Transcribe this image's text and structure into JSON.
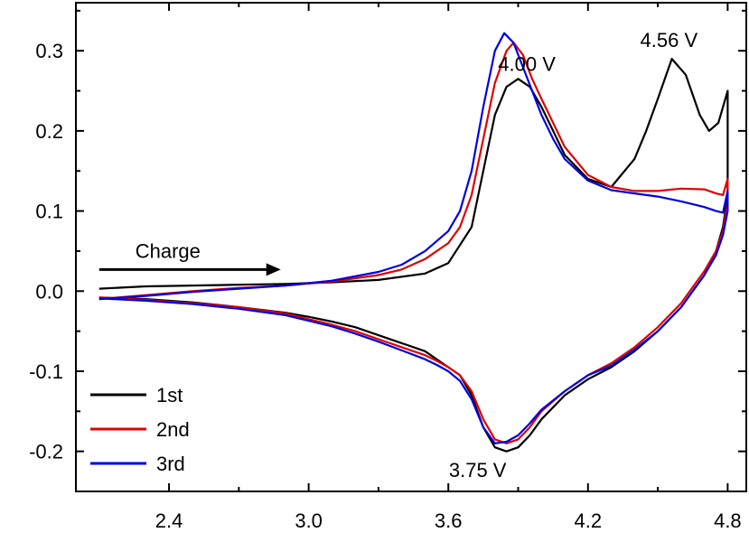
{
  "chart_data": {
    "type": "line",
    "title": "",
    "xlabel": "",
    "ylabel": "",
    "xlim": [
      2.0,
      4.88
    ],
    "ylim": [
      -0.25,
      0.36
    ],
    "x_ticks": [
      2.4,
      3.0,
      3.6,
      4.2,
      4.8
    ],
    "x_tick_labels": [
      "2.4",
      "3.0",
      "3.6",
      "4.2",
      "4.8"
    ],
    "y_ticks": [
      -0.2,
      -0.1,
      0.0,
      0.1,
      0.2,
      0.3
    ],
    "y_tick_labels": [
      "-0.2",
      "-0.1",
      "0.0",
      "0.1",
      "0.2",
      "0.3"
    ],
    "grid": false,
    "legend_position": "bottom-left",
    "series": [
      {
        "name": "1st",
        "color": "#000000",
        "x": [
          2.1,
          2.3,
          2.5,
          2.7,
          2.9,
          3.1,
          3.3,
          3.5,
          3.6,
          3.7,
          3.75,
          3.8,
          3.85,
          3.9,
          3.95,
          4.0,
          4.05,
          4.1,
          4.2,
          4.3,
          4.4,
          4.45,
          4.5,
          4.56,
          4.62,
          4.68,
          4.72,
          4.76,
          4.8,
          4.8,
          4.78,
          4.75,
          4.7,
          4.6,
          4.5,
          4.4,
          4.3,
          4.2,
          4.1,
          4.0,
          3.95,
          3.9,
          3.85,
          3.8,
          3.75,
          3.7,
          3.65,
          3.6,
          3.55,
          3.5,
          3.4,
          3.3,
          3.2,
          3.1,
          3.0,
          2.9,
          2.7,
          2.5,
          2.3,
          2.1
        ],
        "y": [
          0.003,
          0.006,
          0.007,
          0.008,
          0.009,
          0.011,
          0.014,
          0.022,
          0.035,
          0.08,
          0.15,
          0.22,
          0.255,
          0.265,
          0.255,
          0.23,
          0.2,
          0.17,
          0.14,
          0.13,
          0.165,
          0.2,
          0.24,
          0.29,
          0.27,
          0.22,
          0.2,
          0.21,
          0.25,
          0.12,
          0.08,
          0.05,
          0.02,
          -0.02,
          -0.05,
          -0.075,
          -0.095,
          -0.11,
          -0.13,
          -0.16,
          -0.18,
          -0.195,
          -0.2,
          -0.195,
          -0.17,
          -0.13,
          -0.105,
          -0.095,
          -0.085,
          -0.075,
          -0.065,
          -0.055,
          -0.045,
          -0.038,
          -0.032,
          -0.027,
          -0.02,
          -0.014,
          -0.01,
          -0.008
        ]
      },
      {
        "name": "2nd",
        "color": "#e00000",
        "x": [
          2.1,
          2.3,
          2.5,
          2.7,
          2.9,
          3.1,
          3.3,
          3.4,
          3.5,
          3.6,
          3.65,
          3.7,
          3.75,
          3.8,
          3.85,
          3.88,
          3.92,
          3.96,
          4.0,
          4.05,
          4.1,
          4.2,
          4.3,
          4.4,
          4.5,
          4.6,
          4.7,
          4.75,
          4.78,
          4.8,
          4.8,
          4.78,
          4.75,
          4.7,
          4.6,
          4.5,
          4.4,
          4.3,
          4.2,
          4.1,
          4.0,
          3.95,
          3.9,
          3.85,
          3.8,
          3.75,
          3.7,
          3.65,
          3.6,
          3.55,
          3.5,
          3.4,
          3.3,
          3.2,
          3.1,
          3.0,
          2.9,
          2.7,
          2.5,
          2.3,
          2.1
        ],
        "y": [
          -0.01,
          -0.005,
          0.0,
          0.004,
          0.007,
          0.012,
          0.02,
          0.027,
          0.04,
          0.06,
          0.08,
          0.12,
          0.19,
          0.26,
          0.3,
          0.31,
          0.295,
          0.265,
          0.24,
          0.21,
          0.18,
          0.145,
          0.13,
          0.125,
          0.125,
          0.128,
          0.127,
          0.122,
          0.12,
          0.14,
          0.11,
          0.075,
          0.05,
          0.025,
          -0.015,
          -0.045,
          -0.07,
          -0.09,
          -0.105,
          -0.125,
          -0.15,
          -0.17,
          -0.185,
          -0.19,
          -0.185,
          -0.16,
          -0.125,
          -0.105,
          -0.095,
          -0.087,
          -0.08,
          -0.07,
          -0.06,
          -0.05,
          -0.042,
          -0.035,
          -0.028,
          -0.02,
          -0.015,
          -0.011,
          -0.008
        ]
      },
      {
        "name": "3rd",
        "color": "#0000e0",
        "x": [
          2.1,
          2.3,
          2.5,
          2.7,
          2.9,
          3.1,
          3.3,
          3.4,
          3.5,
          3.6,
          3.65,
          3.7,
          3.75,
          3.8,
          3.84,
          3.88,
          3.92,
          3.96,
          4.0,
          4.05,
          4.1,
          4.2,
          4.3,
          4.4,
          4.5,
          4.6,
          4.7,
          4.75,
          4.78,
          4.8,
          4.8,
          4.78,
          4.75,
          4.7,
          4.6,
          4.5,
          4.4,
          4.3,
          4.2,
          4.1,
          4.0,
          3.95,
          3.9,
          3.85,
          3.8,
          3.75,
          3.7,
          3.65,
          3.6,
          3.55,
          3.5,
          3.4,
          3.3,
          3.2,
          3.1,
          3.0,
          2.9,
          2.7,
          2.5,
          2.3,
          2.1
        ],
        "y": [
          -0.01,
          -0.006,
          -0.001,
          0.003,
          0.007,
          0.013,
          0.024,
          0.033,
          0.05,
          0.075,
          0.1,
          0.15,
          0.23,
          0.3,
          0.322,
          0.31,
          0.28,
          0.25,
          0.22,
          0.19,
          0.165,
          0.138,
          0.126,
          0.122,
          0.118,
          0.112,
          0.105,
          0.1,
          0.098,
          0.125,
          0.1,
          0.07,
          0.045,
          0.02,
          -0.02,
          -0.05,
          -0.073,
          -0.093,
          -0.105,
          -0.125,
          -0.148,
          -0.165,
          -0.18,
          -0.188,
          -0.19,
          -0.17,
          -0.135,
          -0.112,
          -0.1,
          -0.092,
          -0.085,
          -0.074,
          -0.063,
          -0.053,
          -0.044,
          -0.037,
          -0.03,
          -0.022,
          -0.016,
          -0.012,
          -0.009
        ]
      }
    ],
    "annotations": [
      {
        "text": "4.00 V",
        "x": 4.0,
        "y": 0.275
      },
      {
        "text": "4.56 V",
        "x": 4.56,
        "y": 0.305
      },
      {
        "text": "3.75 V",
        "x": 3.75,
        "y": -0.232
      }
    ],
    "arrow": {
      "text": "Charge",
      "x_from": 2.1,
      "x_to": 2.88,
      "y": 0.027
    }
  }
}
